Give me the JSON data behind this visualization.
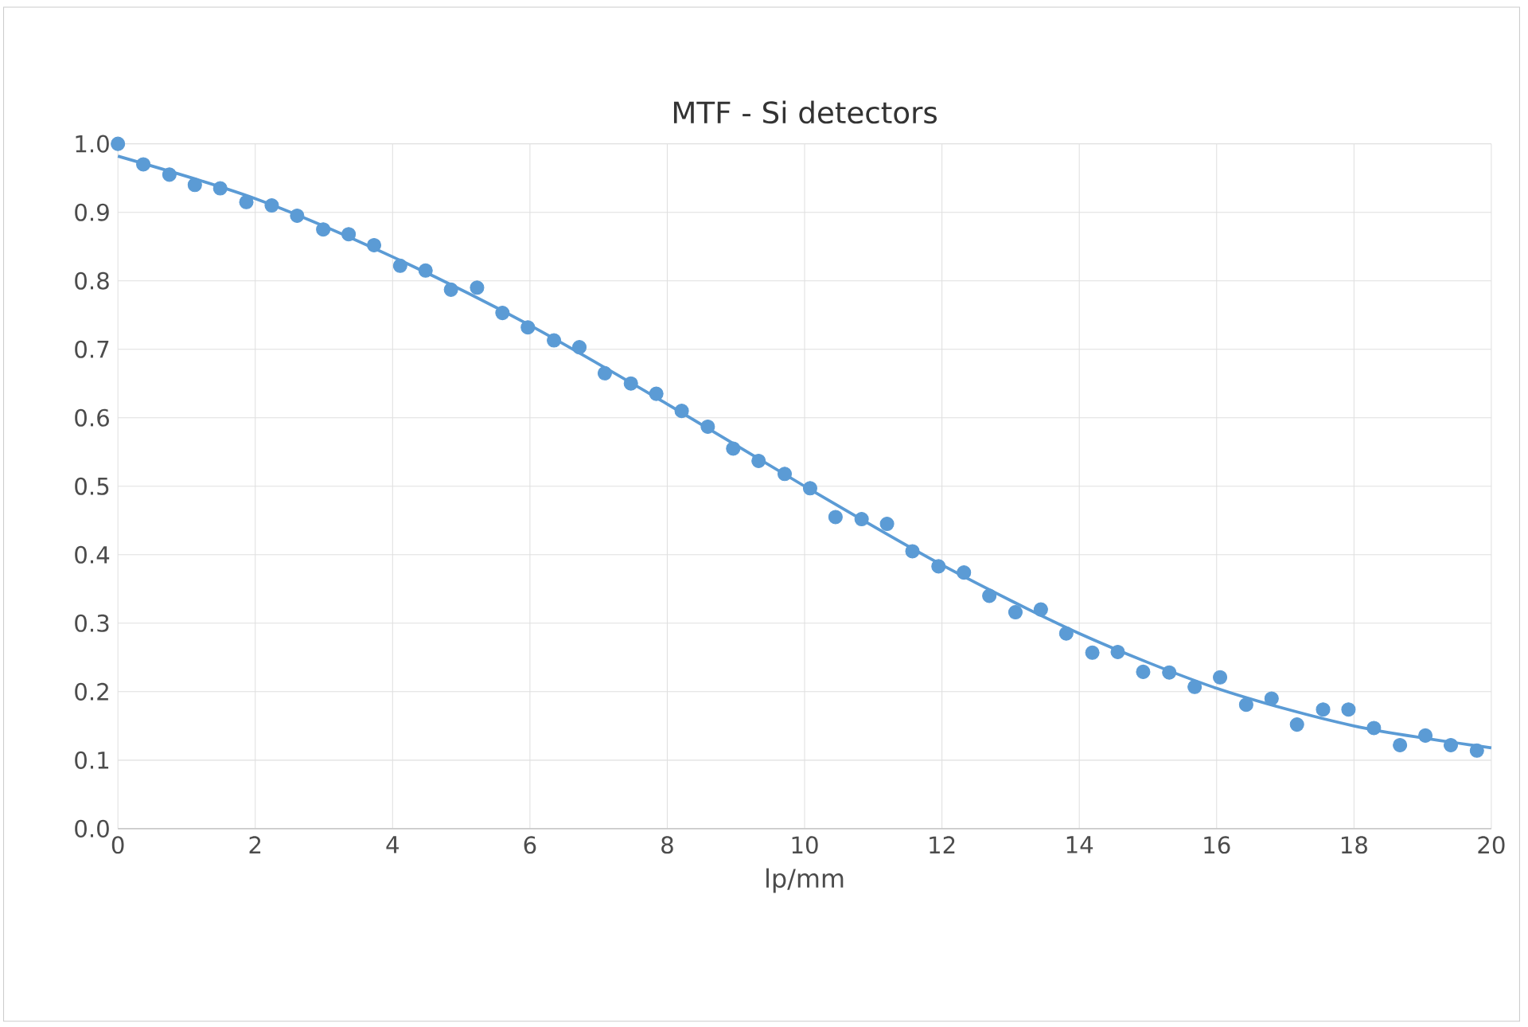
{
  "chart_data": {
    "type": "scatter",
    "title": "MTF - Si detectors",
    "xlabel": "lp/mm",
    "xlim": [
      0,
      20
    ],
    "xticks": [
      0,
      2,
      4,
      6,
      8,
      10,
      12,
      14,
      16,
      18,
      20
    ],
    "ylim": [
      0,
      1
    ],
    "yticks": [
      {
        "value": 0,
        "label": "0.0"
      },
      {
        "value": 0.1,
        "label": "0.1"
      },
      {
        "value": 0.2,
        "label": "0.2"
      },
      {
        "value": 0.3,
        "label": "0.3"
      },
      {
        "value": 0.4,
        "label": "0.4"
      },
      {
        "value": 0.5,
        "label": "0.5"
      },
      {
        "value": 0.6,
        "label": "0.6"
      },
      {
        "value": 0.7,
        "label": "0.7"
      },
      {
        "value": 0.8,
        "label": "0.8"
      },
      {
        "value": 0.9,
        "label": "0.9"
      },
      {
        "value": 1,
        "label": "1.0"
      }
    ],
    "grid": true,
    "legend": false,
    "marker": "circle",
    "series": [
      {
        "color": "#5b9bd5",
        "x": [
          0,
          0.37,
          0.75,
          1.12,
          1.49,
          1.87,
          2.24,
          2.61,
          2.99,
          3.36,
          3.73,
          4.11,
          4.48,
          4.85,
          5.23,
          5.6,
          5.97,
          6.35,
          6.72,
          7.09,
          7.47,
          7.84,
          8.21,
          8.59,
          8.96,
          9.33,
          9.71,
          10.08,
          10.45,
          10.83,
          11.2,
          11.57,
          11.95,
          12.32,
          12.69,
          13.07,
          13.44,
          13.81,
          14.19,
          14.56,
          14.93,
          15.31,
          15.68,
          16.05,
          16.43,
          16.8,
          17.17,
          17.55,
          17.92,
          18.29,
          18.67,
          19.04,
          19.41,
          19.79
        ],
        "values": [
          1.0,
          0.97,
          0.955,
          0.94,
          0.935,
          0.915,
          0.91,
          0.895,
          0.875,
          0.868,
          0.852,
          0.822,
          0.815,
          0.787,
          0.79,
          0.753,
          0.732,
          0.713,
          0.703,
          0.665,
          0.65,
          0.635,
          0.61,
          0.587,
          0.555,
          0.537,
          0.518,
          0.497,
          0.455,
          0.452,
          0.445,
          0.405,
          0.383,
          0.374,
          0.34,
          0.316,
          0.32,
          0.285,
          0.257,
          0.258,
          0.229,
          0.228,
          0.207,
          0.221,
          0.181,
          0.19,
          0.152,
          0.174,
          0.174,
          0.147,
          0.122,
          0.136,
          0.122,
          0.114
        ]
      },
      {
        "type": "line",
        "color": "#5b9bd5",
        "marker": "none",
        "line_style": "solid",
        "x": [
          0,
          2,
          4,
          6,
          8,
          10,
          12,
          14,
          16,
          18,
          20
        ],
        "values": [
          0.982,
          0.92,
          0.835,
          0.735,
          0.62,
          0.5,
          0.385,
          0.285,
          0.205,
          0.15,
          0.118
        ]
      }
    ]
  }
}
